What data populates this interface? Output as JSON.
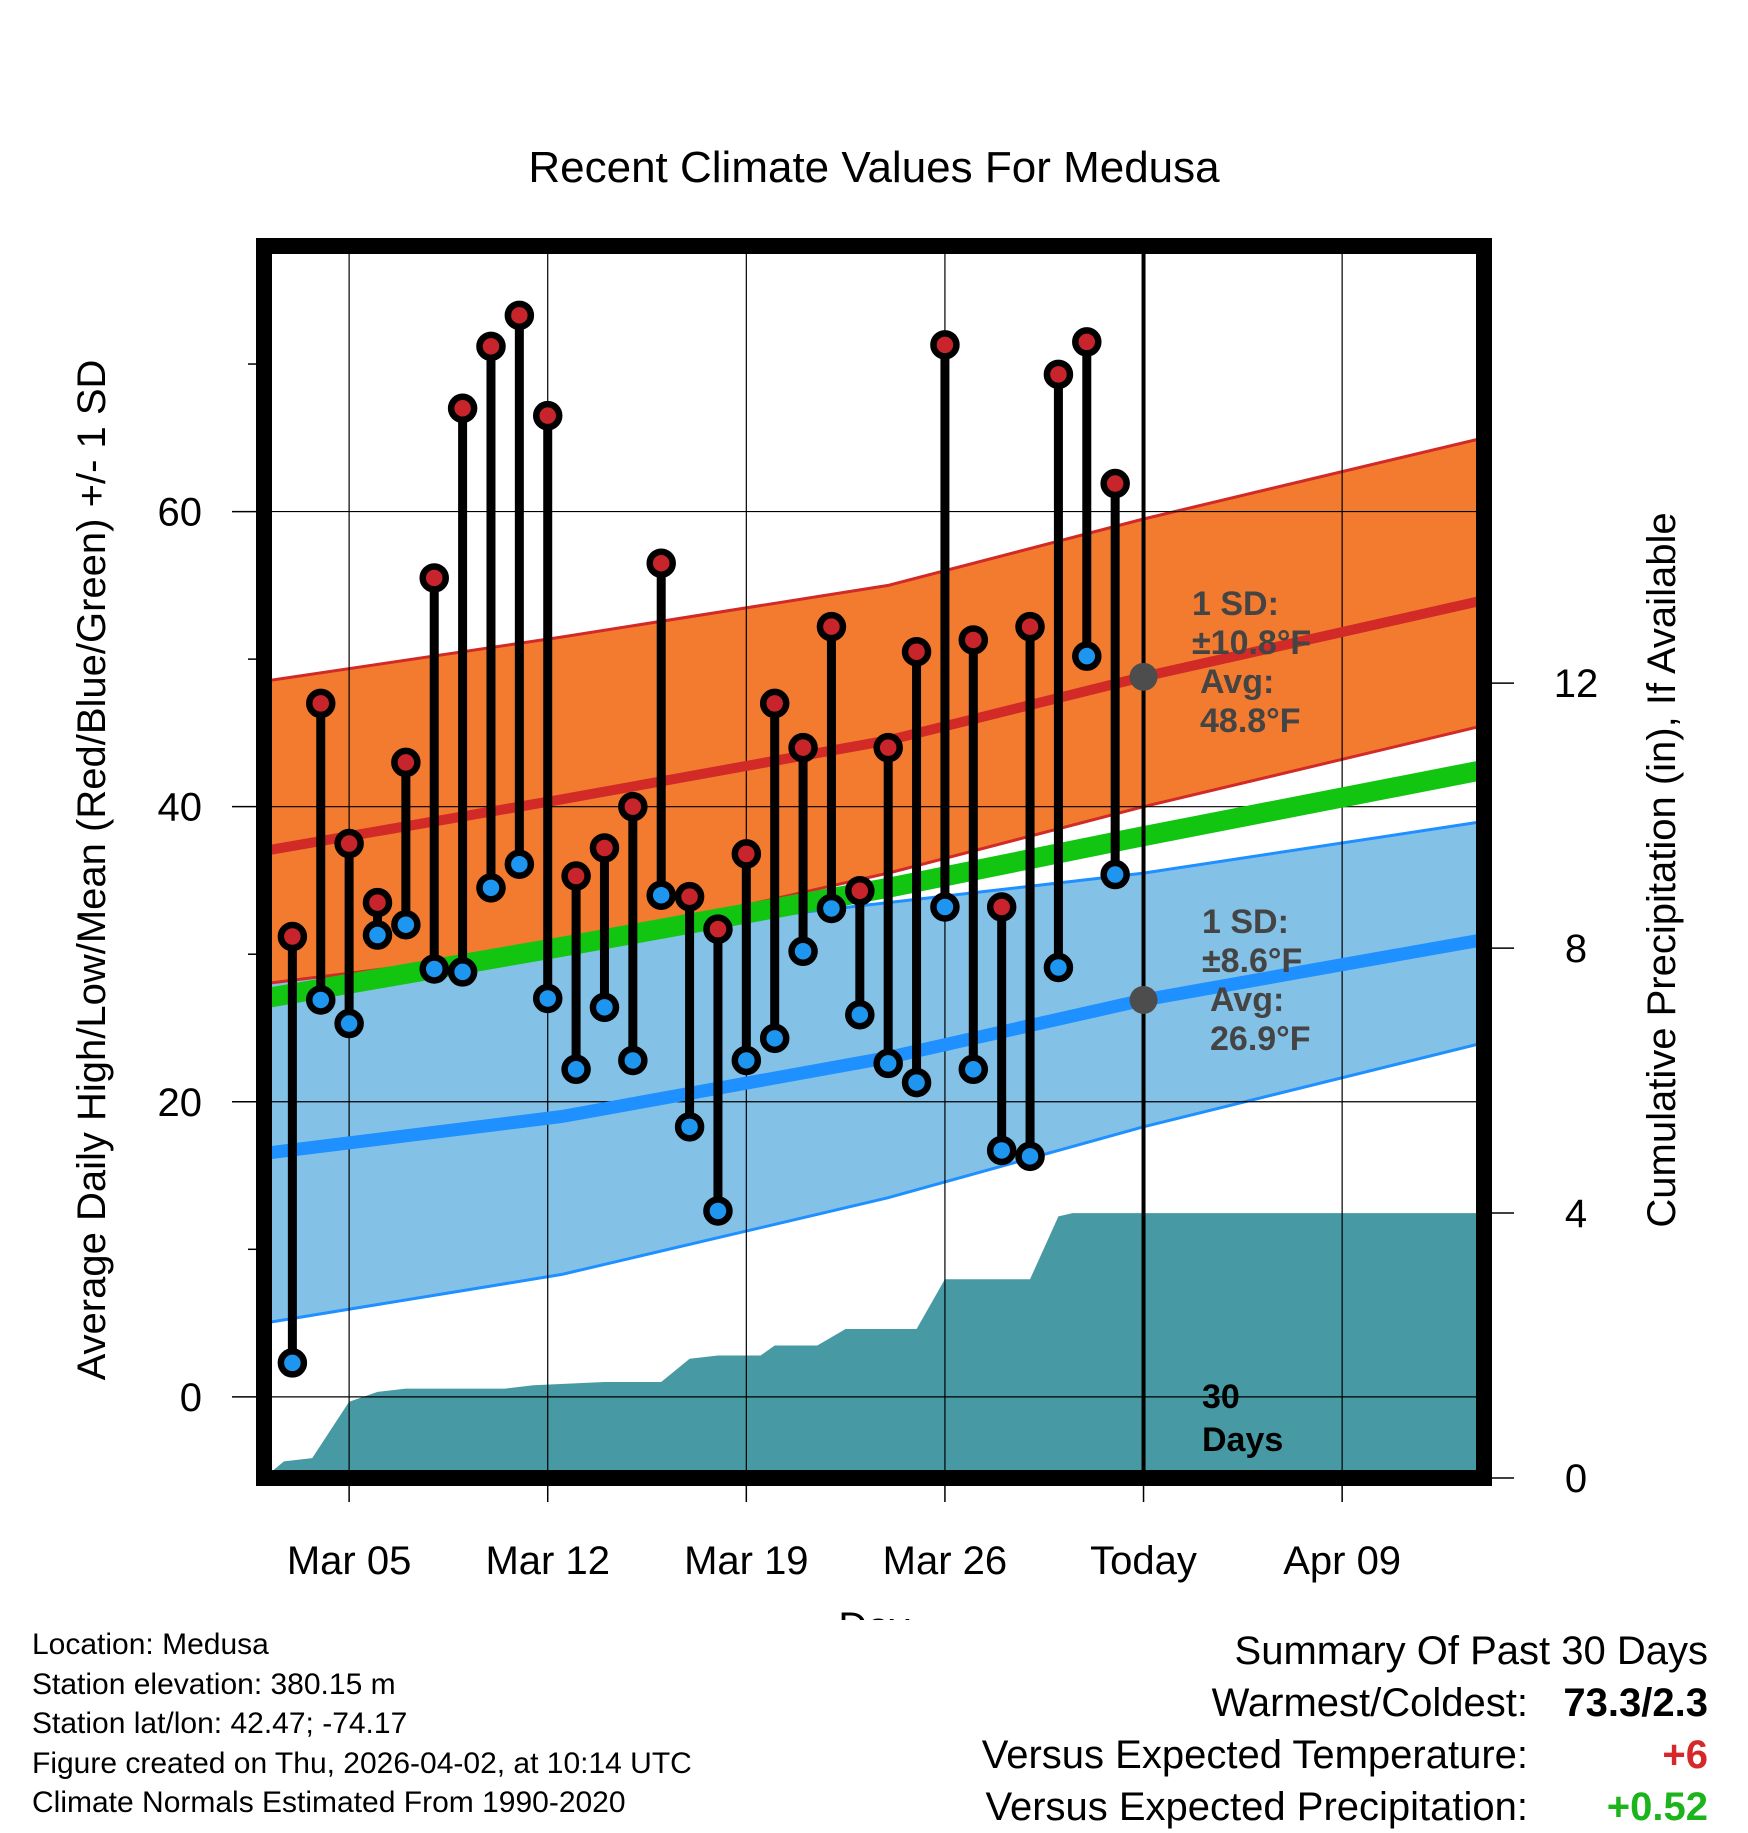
{
  "chart_data": {
    "type": "climate-range",
    "title": "Recent Climate Values For Medusa",
    "xlabel": "Day",
    "ylabel_left": "Average Daily High/Low/Mean (Red/Blue/Green) +/- 1 SD",
    "ylabel_right": "Cumulative Precipitation (in), If Available",
    "x_range_days": [
      0,
      43
    ],
    "y_range": [
      -5.5,
      78
    ],
    "y2_range": [
      0,
      18.6
    ],
    "y_ticks": [
      "0",
      "20",
      "40",
      "60"
    ],
    "y2_ticks": [
      "0",
      "4",
      "8",
      "12"
    ],
    "x_ticks": [
      {
        "day": 3,
        "label": "Mar 05"
      },
      {
        "day": 10,
        "label": "Mar 12"
      },
      {
        "day": 17,
        "label": "Mar 19"
      },
      {
        "day": 24,
        "label": "Mar 26"
      },
      {
        "day": 31,
        "label": "Today"
      },
      {
        "day": 38,
        "label": "Apr 09"
      }
    ],
    "today_day": 31,
    "today_label": [
      "30",
      "Days"
    ],
    "days": [
      1,
      2,
      3,
      4,
      5,
      6,
      7,
      8,
      9,
      10,
      11,
      12,
      13,
      14,
      15,
      16,
      17,
      18,
      19,
      20,
      21,
      22,
      23,
      24,
      25,
      26,
      27,
      28,
      29,
      30
    ],
    "highs": [
      31.2,
      47.0,
      37.5,
      33.5,
      43.0,
      55.5,
      67.0,
      71.2,
      73.3,
      66.5,
      35.3,
      37.2,
      40.0,
      56.5,
      33.9,
      31.7,
      36.8,
      47.0,
      44.0,
      52.2,
      34.3,
      44.0,
      50.5,
      71.3,
      51.3,
      33.2,
      52.2,
      69.3,
      71.5,
      61.9
    ],
    "lows": [
      2.3,
      26.9,
      25.3,
      31.3,
      32.0,
      29.0,
      28.8,
      34.5,
      36.1,
      27.0,
      22.2,
      26.4,
      22.8,
      34.0,
      18.3,
      12.6,
      22.8,
      24.3,
      30.2,
      33.1,
      25.9,
      22.6,
      21.3,
      33.2,
      22.2,
      16.7,
      16.3,
      29.1,
      50.2,
      35.4
    ],
    "normal_high_mean": [
      [
        0,
        37.0
      ],
      [
        10.5,
        40.5
      ],
      [
        22,
        44.5
      ],
      [
        31,
        48.8
      ],
      [
        43,
        54.0
      ]
    ],
    "normal_high_upper": [
      [
        0,
        48.5
      ],
      [
        10.5,
        51.5
      ],
      [
        22,
        55.0
      ],
      [
        31,
        59.5
      ],
      [
        43,
        65.0
      ]
    ],
    "normal_high_lower": [
      [
        0,
        28.0
      ],
      [
        10.5,
        30.5
      ],
      [
        22,
        35.5
      ],
      [
        31,
        40.0
      ],
      [
        43,
        45.5
      ]
    ],
    "normal_low_mean": [
      [
        0,
        16.5
      ],
      [
        10.5,
        19.0
      ],
      [
        22,
        23.0
      ],
      [
        31,
        26.9
      ],
      [
        43,
        31.0
      ]
    ],
    "normal_low_upper": [
      [
        0,
        28.5
      ],
      [
        10.5,
        31.0
      ],
      [
        22,
        33.5
      ],
      [
        31,
        35.5
      ],
      [
        43,
        39.0
      ]
    ],
    "normal_low_lower": [
      [
        0,
        5.0
      ],
      [
        10.5,
        8.3
      ],
      [
        22,
        13.5
      ],
      [
        31,
        18.3
      ],
      [
        43,
        24.0
      ]
    ],
    "normal_mean": [
      [
        0,
        27.0
      ],
      [
        10.5,
        30.5
      ],
      [
        22,
        34.5
      ],
      [
        31,
        38.0
      ],
      [
        43,
        42.5
      ]
    ],
    "precip_cumulative": [
      [
        0,
        0.0
      ],
      [
        0.7,
        0.25
      ],
      [
        1.7,
        0.3
      ],
      [
        3.0,
        1.15
      ],
      [
        4.0,
        1.3
      ],
      [
        5.0,
        1.35
      ],
      [
        8.5,
        1.35
      ],
      [
        9.5,
        1.4
      ],
      [
        12.0,
        1.45
      ],
      [
        14.0,
        1.45
      ],
      [
        15.0,
        1.8
      ],
      [
        16.0,
        1.85
      ],
      [
        17.5,
        1.85
      ],
      [
        18.0,
        2.0
      ],
      [
        19.5,
        2.0
      ],
      [
        20.5,
        2.25
      ],
      [
        23.0,
        2.25
      ],
      [
        24.0,
        3.0
      ],
      [
        27.0,
        3.0
      ],
      [
        28.0,
        3.95
      ],
      [
        28.5,
        4.0
      ],
      [
        43.0,
        4.0
      ]
    ],
    "annotations": {
      "high": {
        "value": 48.8,
        "lines": [
          "1 SD:",
          "±10.8°F",
          "Avg:",
          "48.8°F"
        ]
      },
      "low": {
        "value": 26.9,
        "lines": [
          "1 SD:",
          "±8.6°F",
          "Avg:",
          "26.9°F"
        ]
      }
    },
    "colors": {
      "high_band": "#F37B2F",
      "high_line": "#D12A27",
      "low_band": "#84C1E6",
      "low_line": "#1E90FF",
      "mean_line": "#11C511",
      "precip": "#479AA3",
      "high_dot": "#C8242B",
      "low_dot": "#1E96F0",
      "annotation": "#444444"
    }
  },
  "footer": {
    "location": "Location: Medusa",
    "elevation": "Station elevation: 380.15 m",
    "latlon": "Station lat/lon: 42.47; -74.17",
    "created": "Figure created on Thu, 2026-04-02, at 10:14 UTC",
    "normals": "Climate Normals Estimated From 1990-2020"
  },
  "summary": {
    "title": "Summary Of Past 30 Days",
    "warmest_label": "Warmest/Coldest:",
    "warmest_value": "73.3/2.3",
    "temp_label": "Versus Expected Temperature:",
    "temp_value": "+6",
    "temp_color": "#D62828",
    "precip_label": "Versus Expected Precipitation:",
    "precip_value": "+0.52",
    "precip_color": "#1BB51B"
  }
}
